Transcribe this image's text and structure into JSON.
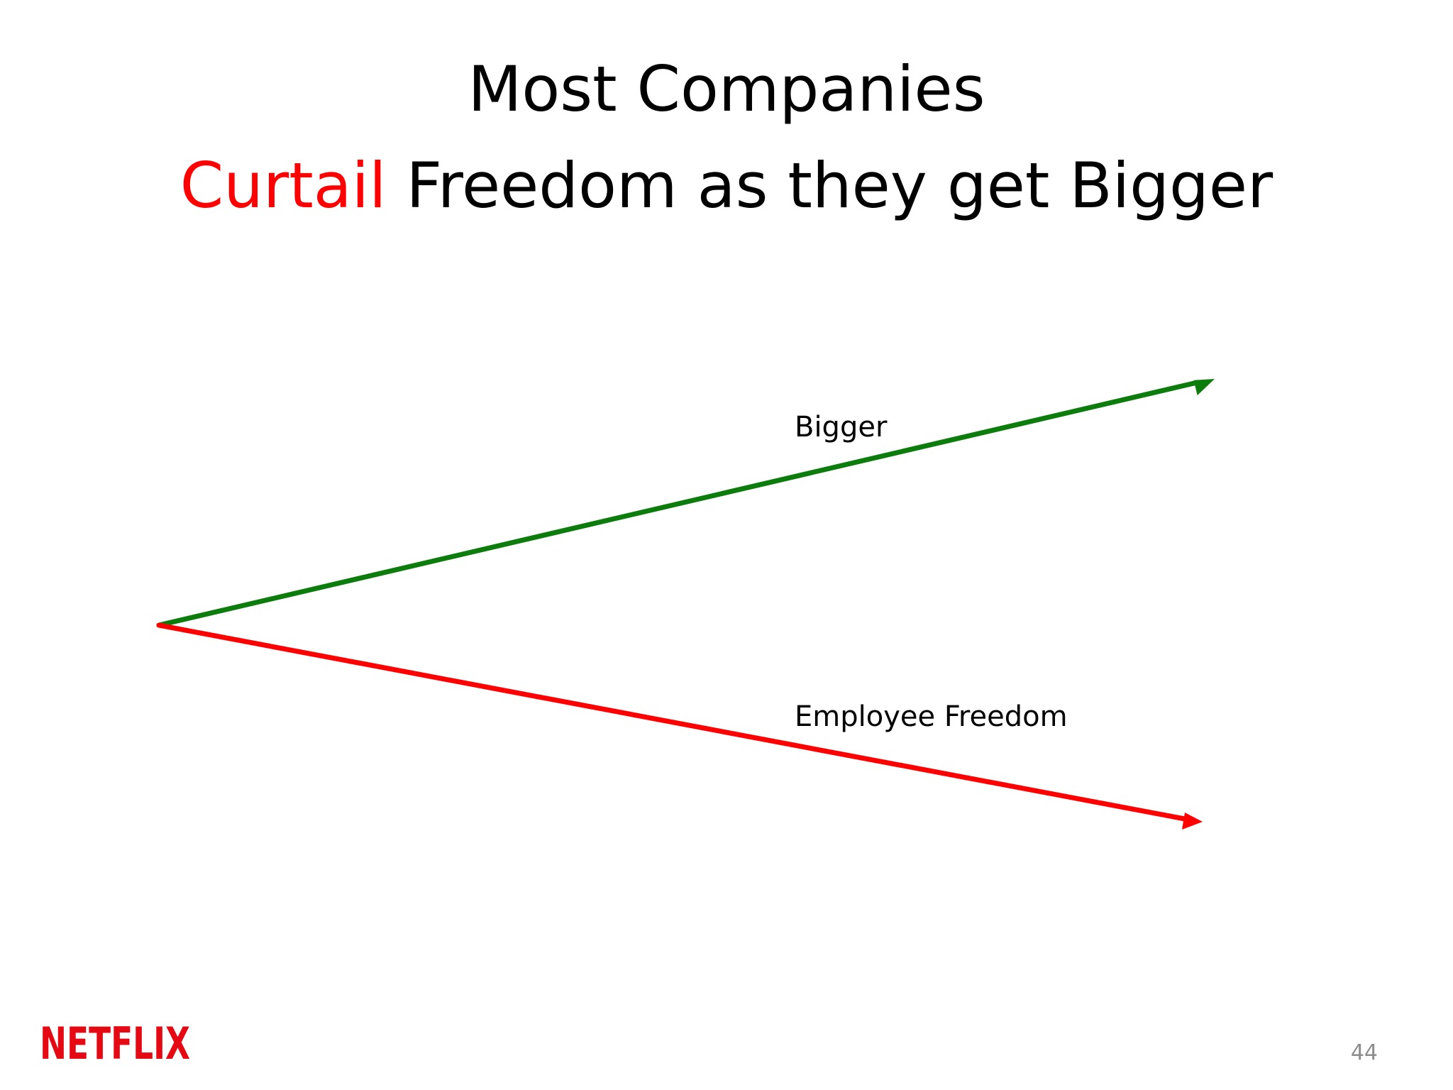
{
  "slide": {
    "title_line_1": "Most Companies",
    "title_line_2_accent": "Curtail",
    "title_line_2_rest": " Freedom as they get Bigger",
    "page_number": "44"
  },
  "diagram": {
    "arrows": [
      {
        "label": "Bigger",
        "direction": "up",
        "color": "#0c7c0c"
      },
      {
        "label": "Employee Freedom",
        "direction": "down",
        "color": "#ff0000"
      }
    ]
  },
  "logo": {
    "text": "NETFLIX",
    "color": "#e50914"
  },
  "colors": {
    "accent": "#ff0000",
    "growth_arrow": "#0c7c0c",
    "freedom_arrow": "#ff0000",
    "page_number": "#8c8c8c"
  }
}
